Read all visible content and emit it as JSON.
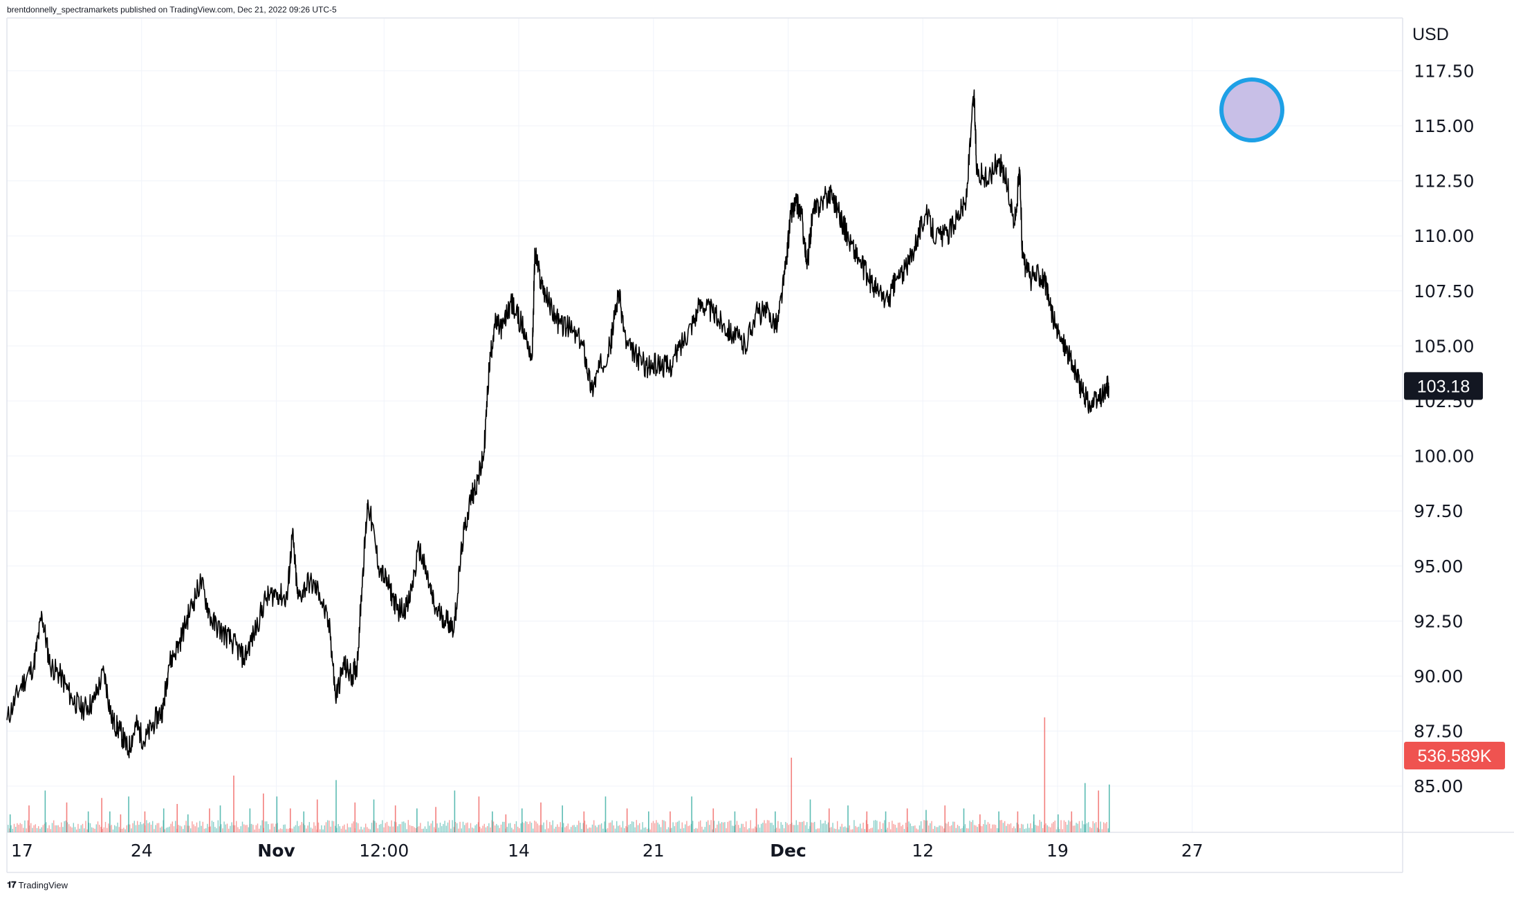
{
  "header": {
    "attribution": "brentdonnelly_spectramarkets published on TradingView.com, Dec 21, 2022 09:26 UTC-5"
  },
  "footer": {
    "brand": "TradingView"
  },
  "colors": {
    "price_line": "#000000",
    "volume_up": "#26a69a",
    "volume_down": "#ef5350",
    "grid": "#f0f3fa",
    "last_price_badge_bg": "#131722",
    "volume_badge_bg": "#ef5350",
    "marker_fill": "#c8bfe7",
    "marker_stroke": "#1ea0e6"
  },
  "chart_data": {
    "type": "line",
    "currency_label": "USD",
    "y_ticks": [
      "117.50",
      "115.00",
      "112.50",
      "110.00",
      "107.50",
      "105.00",
      "102.50",
      "100.00",
      "97.50",
      "95.00",
      "92.50",
      "90.00",
      "87.50",
      "85.00"
    ],
    "ylim": [
      82.9,
      119.9
    ],
    "x_ticks": [
      {
        "label": "17",
        "idx": 0,
        "bold": false
      },
      {
        "label": "24",
        "idx": 5,
        "bold": false
      },
      {
        "label": "Nov",
        "idx": 10,
        "bold": true
      },
      {
        "label": "12:00",
        "idx": 14,
        "bold": false
      },
      {
        "label": "14",
        "idx": 19,
        "bold": false
      },
      {
        "label": "21",
        "idx": 24,
        "bold": false
      },
      {
        "label": "Dec",
        "idx": 29,
        "bold": true
      },
      {
        "label": "12",
        "idx": 34,
        "bold": false
      },
      {
        "label": "19",
        "idx": 39,
        "bold": false
      },
      {
        "label": "27",
        "idx": 44,
        "bold": false
      }
    ],
    "last_price": "103.18",
    "last_volume": "536.589K",
    "series": [
      {
        "values": [
          [
            0,
            88.0
          ],
          [
            0.5,
            89.5
          ],
          [
            1.0,
            90.5
          ],
          [
            1.3,
            92.8
          ],
          [
            1.6,
            90.5
          ],
          [
            2.0,
            90.0
          ],
          [
            2.4,
            89.0
          ],
          [
            2.8,
            88.5
          ],
          [
            3.2,
            88.8
          ],
          [
            3.6,
            90.2
          ],
          [
            3.9,
            88.0
          ],
          [
            4.2,
            87.5
          ],
          [
            4.5,
            86.6
          ],
          [
            4.8,
            87.8
          ],
          [
            5.1,
            87.0
          ],
          [
            5.5,
            88.0
          ],
          [
            5.8,
            88.5
          ],
          [
            6.0,
            90.5
          ],
          [
            6.4,
            91.5
          ],
          [
            6.8,
            93.0
          ],
          [
            7.2,
            94.3
          ],
          [
            7.6,
            92.5
          ],
          [
            8.0,
            92.0
          ],
          [
            8.4,
            91.5
          ],
          [
            8.8,
            90.8
          ],
          [
            9.2,
            92.0
          ],
          [
            9.6,
            93.5
          ],
          [
            10.0,
            93.8
          ],
          [
            10.4,
            93.5
          ],
          [
            10.6,
            96.5
          ],
          [
            10.8,
            93.5
          ],
          [
            11.2,
            94.3
          ],
          [
            11.6,
            93.8
          ],
          [
            12.0,
            92.0
          ],
          [
            12.2,
            89.0
          ],
          [
            12.5,
            90.5
          ],
          [
            12.8,
            90.0
          ],
          [
            13.0,
            90.5
          ],
          [
            13.2,
            94.5
          ],
          [
            13.4,
            98.0
          ],
          [
            13.8,
            95.0
          ],
          [
            14.2,
            94.0
          ],
          [
            14.5,
            93.0
          ],
          [
            14.9,
            93.2
          ],
          [
            15.3,
            95.8
          ],
          [
            15.6,
            94.5
          ],
          [
            15.9,
            93.0
          ],
          [
            16.3,
            92.6
          ],
          [
            16.6,
            92.2
          ],
          [
            16.9,
            96.0
          ],
          [
            17.2,
            98.0
          ],
          [
            17.5,
            99.0
          ],
          [
            17.7,
            100.0
          ],
          [
            17.9,
            104.0
          ],
          [
            18.1,
            106.0
          ],
          [
            18.4,
            105.8
          ],
          [
            18.7,
            107.0
          ],
          [
            19.1,
            106.0
          ],
          [
            19.5,
            104.5
          ],
          [
            19.6,
            109.3
          ],
          [
            19.8,
            108.0
          ],
          [
            20.1,
            107.0
          ],
          [
            20.5,
            106.0
          ],
          [
            20.9,
            105.8
          ],
          [
            21.4,
            105.0
          ],
          [
            21.7,
            103.0
          ],
          [
            22.0,
            104.0
          ],
          [
            22.4,
            105.0
          ],
          [
            22.7,
            107.5
          ],
          [
            23.0,
            105.0
          ],
          [
            23.4,
            104.5
          ],
          [
            23.8,
            104.0
          ],
          [
            24.2,
            104.2
          ],
          [
            24.6,
            104.0
          ],
          [
            25.0,
            105.0
          ],
          [
            25.4,
            106.0
          ],
          [
            25.8,
            107.0
          ],
          [
            26.2,
            106.5
          ],
          [
            26.6,
            106.0
          ],
          [
            27.0,
            105.5
          ],
          [
            27.4,
            105.0
          ],
          [
            27.8,
            106.5
          ],
          [
            28.2,
            106.5
          ],
          [
            28.6,
            106.0
          ],
          [
            28.9,
            108.5
          ],
          [
            29.1,
            111.0
          ],
          [
            29.3,
            111.5
          ],
          [
            29.5,
            111.0
          ],
          [
            29.7,
            108.5
          ],
          [
            29.9,
            111.0
          ],
          [
            30.2,
            111.5
          ],
          [
            30.6,
            112.0
          ],
          [
            30.9,
            111.0
          ],
          [
            31.2,
            110.0
          ],
          [
            31.6,
            109.0
          ],
          [
            32.0,
            108.0
          ],
          [
            32.3,
            107.5
          ],
          [
            32.7,
            107.0
          ],
          [
            33.0,
            108.0
          ],
          [
            33.4,
            108.5
          ],
          [
            33.8,
            110.0
          ],
          [
            34.1,
            111.0
          ],
          [
            34.5,
            110.0
          ],
          [
            34.9,
            110.0
          ],
          [
            35.3,
            111.0
          ],
          [
            35.6,
            111.5
          ],
          [
            35.9,
            116.5
          ],
          [
            36.0,
            113.0
          ],
          [
            36.4,
            112.5
          ],
          [
            36.8,
            113.5
          ],
          [
            37.1,
            112.5
          ],
          [
            37.4,
            110.5
          ],
          [
            37.6,
            113.0
          ],
          [
            37.7,
            109.0
          ],
          [
            38.0,
            108.0
          ],
          [
            38.3,
            108.3
          ],
          [
            38.5,
            108.0
          ],
          [
            38.7,
            107.0
          ],
          [
            39.0,
            105.5
          ],
          [
            39.3,
            105.0
          ],
          [
            39.6,
            104.0
          ],
          [
            39.9,
            103.0
          ],
          [
            40.2,
            102.3
          ],
          [
            40.5,
            102.5
          ],
          [
            40.8,
            103.0
          ],
          [
            40.9,
            103.18
          ]
        ]
      }
    ],
    "volume": {
      "scale_max": 536.589,
      "spikes": [
        [
          0.1,
          12
        ],
        [
          0.8,
          18
        ],
        [
          1.4,
          28
        ],
        [
          2.2,
          20
        ],
        [
          3.0,
          14
        ],
        [
          3.5,
          23
        ],
        [
          3.8,
          14
        ],
        [
          4.2,
          12
        ],
        [
          4.5,
          24
        ],
        [
          5.1,
          14
        ],
        [
          5.8,
          16
        ],
        [
          6.3,
          19
        ],
        [
          6.7,
          12
        ],
        [
          7.5,
          16
        ],
        [
          7.9,
          18
        ],
        [
          8.4,
          38
        ],
        [
          9.0,
          16
        ],
        [
          9.5,
          26
        ],
        [
          10.0,
          24
        ],
        [
          10.5,
          16
        ],
        [
          11.0,
          14
        ],
        [
          11.5,
          22
        ],
        [
          12.2,
          35
        ],
        [
          12.9,
          20
        ],
        [
          13.6,
          22
        ],
        [
          14.4,
          18
        ],
        [
          15.2,
          16
        ],
        [
          15.9,
          17
        ],
        [
          16.6,
          28
        ],
        [
          17.5,
          24
        ],
        [
          18.0,
          14
        ],
        [
          18.5,
          12
        ],
        [
          19.1,
          16
        ],
        [
          19.8,
          20
        ],
        [
          20.6,
          18
        ],
        [
          21.4,
          14
        ],
        [
          22.2,
          24
        ],
        [
          23.0,
          16
        ],
        [
          23.8,
          14
        ],
        [
          24.6,
          14
        ],
        [
          25.4,
          24
        ],
        [
          26.2,
          16
        ],
        [
          27.0,
          14
        ],
        [
          27.8,
          16
        ],
        [
          28.5,
          14
        ],
        [
          29.1,
          50
        ],
        [
          29.8,
          22
        ],
        [
          30.5,
          16
        ],
        [
          31.2,
          18
        ],
        [
          31.9,
          14
        ],
        [
          32.6,
          14
        ],
        [
          33.4,
          16
        ],
        [
          34.1,
          15
        ],
        [
          34.8,
          18
        ],
        [
          35.5,
          16
        ],
        [
          36.1,
          12
        ],
        [
          36.8,
          14
        ],
        [
          37.5,
          14
        ],
        [
          38.1,
          12
        ],
        [
          38.5,
          77
        ],
        [
          39.0,
          12
        ],
        [
          39.5,
          14
        ],
        [
          40.0,
          33
        ],
        [
          40.5,
          28
        ],
        [
          40.9,
          32
        ]
      ]
    }
  }
}
